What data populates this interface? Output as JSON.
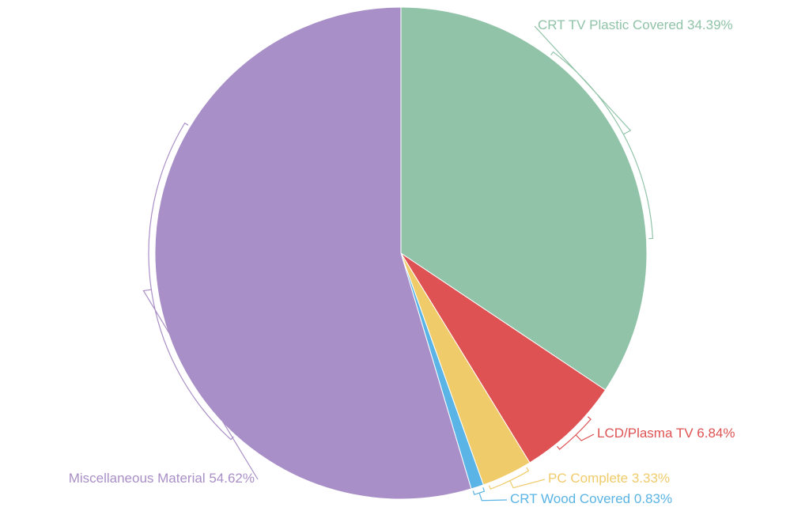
{
  "chart_data": {
    "type": "pie",
    "categories": [
      "CRT TV Plastic Covered",
      "LCD/Plasma TV",
      "PC Complete",
      "CRT Wood Covered",
      "Miscellaneous Material"
    ],
    "values": [
      34.39,
      6.84,
      3.33,
      0.83,
      54.62
    ],
    "value_labels": [
      "34.39%",
      "6.84%",
      "3.33%",
      "0.83%",
      "54.62%"
    ],
    "colors": [
      "#90c3a8",
      "#de5253",
      "#f0cb69",
      "#5ab4e5",
      "#a98fc7"
    ]
  }
}
